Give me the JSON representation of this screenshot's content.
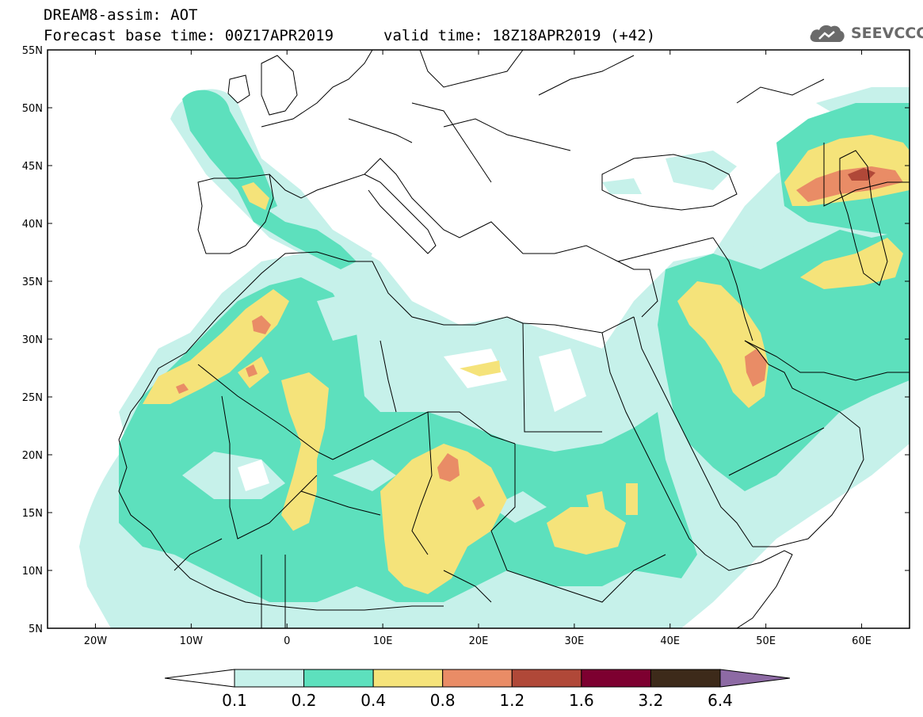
{
  "header": {
    "title_line1": "DREAM8-assim: AOT",
    "title_line2": "Forecast base time: 00Z17APR2019",
    "valid_time": "valid time: 18Z18APR2019 (+42)"
  },
  "logo": {
    "text": "SEEVCCC",
    "icon": "cloud-icon"
  },
  "map": {
    "lon_range": [
      -25,
      65
    ],
    "lat_range": [
      5,
      55
    ],
    "lat_labels": [
      {
        "value": 55,
        "label": "55N"
      },
      {
        "value": 50,
        "label": "50N"
      },
      {
        "value": 45,
        "label": "45N"
      },
      {
        "value": 40,
        "label": "40N"
      },
      {
        "value": 35,
        "label": "35N"
      },
      {
        "value": 30,
        "label": "30N"
      },
      {
        "value": 25,
        "label": "25N"
      },
      {
        "value": 20,
        "label": "20N"
      },
      {
        "value": 15,
        "label": "15N"
      },
      {
        "value": 10,
        "label": "10N"
      },
      {
        "value": 5,
        "label": "5N"
      }
    ],
    "lon_labels": [
      {
        "value": -20,
        "label": "20W"
      },
      {
        "value": -10,
        "label": "10W"
      },
      {
        "value": 0,
        "label": "0"
      },
      {
        "value": 10,
        "label": "10E"
      },
      {
        "value": 20,
        "label": "20E"
      },
      {
        "value": 30,
        "label": "30E"
      },
      {
        "value": 40,
        "label": "40E"
      },
      {
        "value": 50,
        "label": "50E"
      },
      {
        "value": 60,
        "label": "60E"
      }
    ]
  },
  "colorbar": {
    "levels": [
      "0.1",
      "0.2",
      "0.4",
      "0.8",
      "1.2",
      "1.6",
      "3.2",
      "6.4"
    ],
    "colors": [
      "#ffffff",
      "#c6f1ea",
      "#5de0bd",
      "#f5e37a",
      "#e98c66",
      "#b04838",
      "#7d0030",
      "#3d2a1a",
      "#8d6aa4"
    ]
  }
}
